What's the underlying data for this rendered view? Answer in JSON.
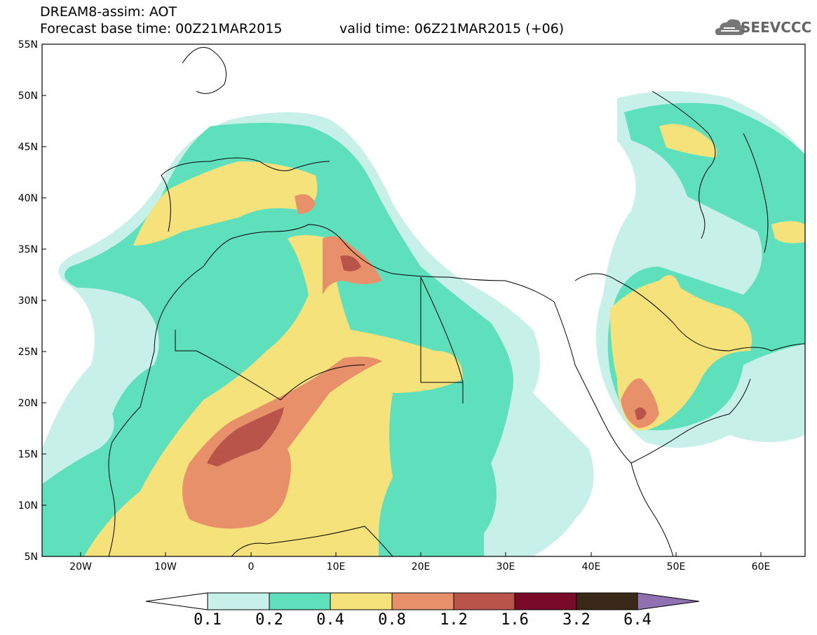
{
  "header": {
    "model_title": "DREAM8-assim: AOT",
    "base_time": "Forecast base time: 00Z21MAR2015",
    "valid_time": "valid time: 06Z21MAR2015 (+06)"
  },
  "logo": {
    "text": "SEEVCCC",
    "icon": "cloud-icon"
  },
  "axes": {
    "lat_labels": [
      "55N",
      "50N",
      "45N",
      "40N",
      "35N",
      "30N",
      "25N",
      "20N",
      "15N",
      "10N",
      "5N"
    ],
    "lon_labels": [
      "20W",
      "10W",
      "0",
      "10E",
      "20E",
      "30E",
      "40E",
      "50E",
      "60E"
    ]
  },
  "colorbar": {
    "labels": [
      "0.1",
      "0.2",
      "0.4",
      "0.8",
      "1.2",
      "1.6",
      "3.2",
      "6.4"
    ],
    "colors": [
      "#ffffff",
      "#c6f0e8",
      "#5fe0bc",
      "#f5e27a",
      "#e8906a",
      "#b8544a",
      "#7a0a2a",
      "#3a2818",
      "#9070b0"
    ]
  },
  "colors": {
    "c1": "#c6f0e8",
    "c2": "#5fe0bc",
    "c3": "#f5e27a",
    "c4": "#e8906a",
    "c5": "#b8544a"
  }
}
